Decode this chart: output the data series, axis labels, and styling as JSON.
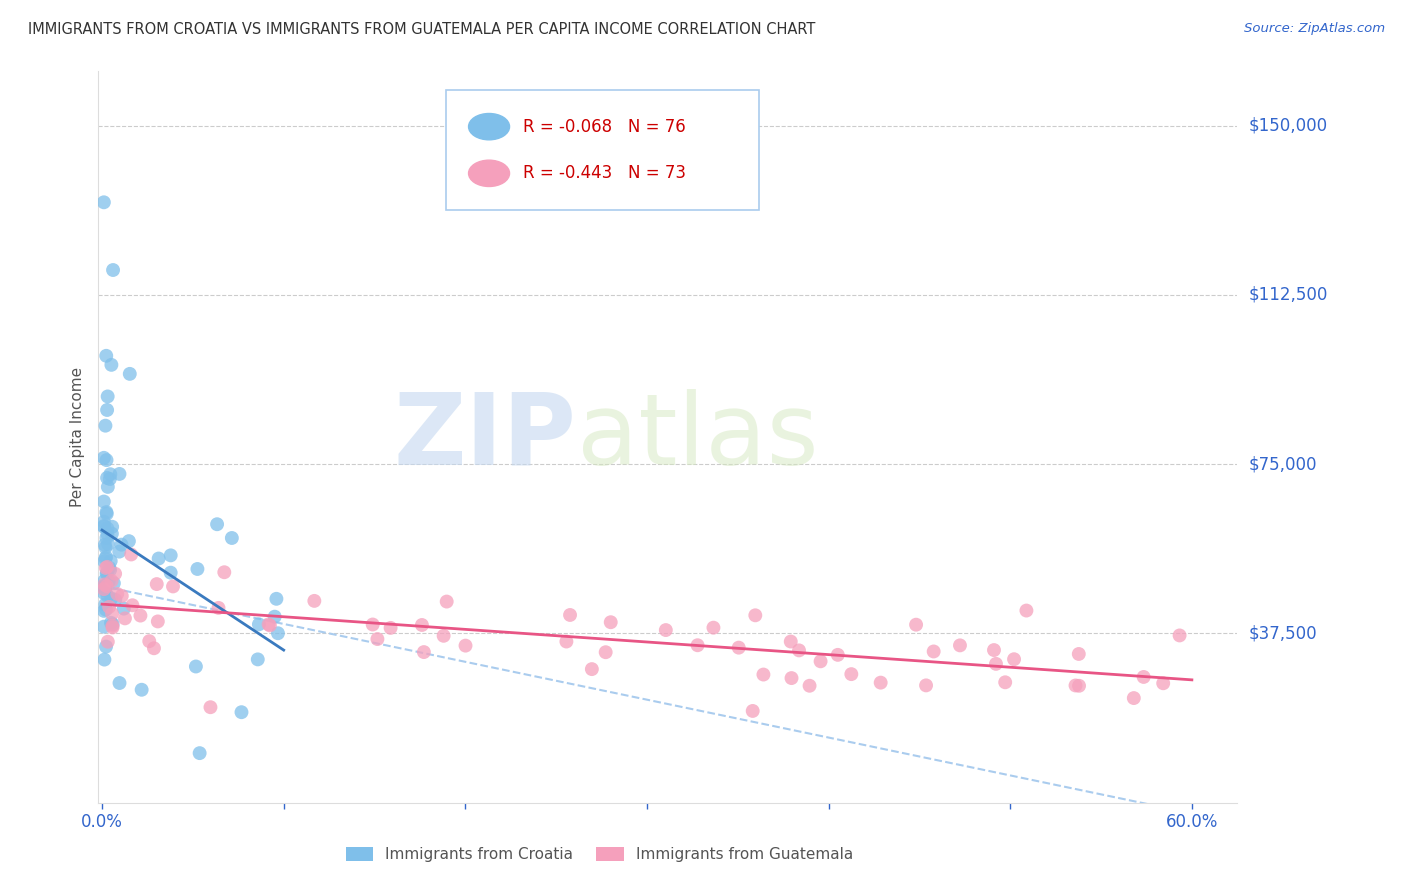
{
  "title": "IMMIGRANTS FROM CROATIA VS IMMIGRANTS FROM GUATEMALA PER CAPITA INCOME CORRELATION CHART",
  "source": "Source: ZipAtlas.com",
  "ylabel": "Per Capita Income",
  "ytick_labels": [
    "$150,000",
    "$112,500",
    "$75,000",
    "$37,500"
  ],
  "ytick_values": [
    150000,
    112500,
    75000,
    37500
  ],
  "ymin": 0,
  "ymax": 162000,
  "xmin": -0.002,
  "xmax": 0.625,
  "watermark_zip": "ZIP",
  "watermark_atlas": "atlas",
  "croatia_R": -0.068,
  "croatia_N": 76,
  "guatemala_R": -0.443,
  "guatemala_N": 73,
  "croatia_color": "#7fbfea",
  "croatia_line_color": "#3a7abf",
  "guatemala_color": "#f5a0bc",
  "guatemala_line_color": "#e85585",
  "dashed_line_color": "#aaccee",
  "xtick_positions": [
    0.0,
    0.1,
    0.2,
    0.3,
    0.4,
    0.5,
    0.6
  ],
  "xtick_labels": [
    "0.0%",
    "",
    "",
    "",
    "",
    "",
    "60.0%"
  ]
}
